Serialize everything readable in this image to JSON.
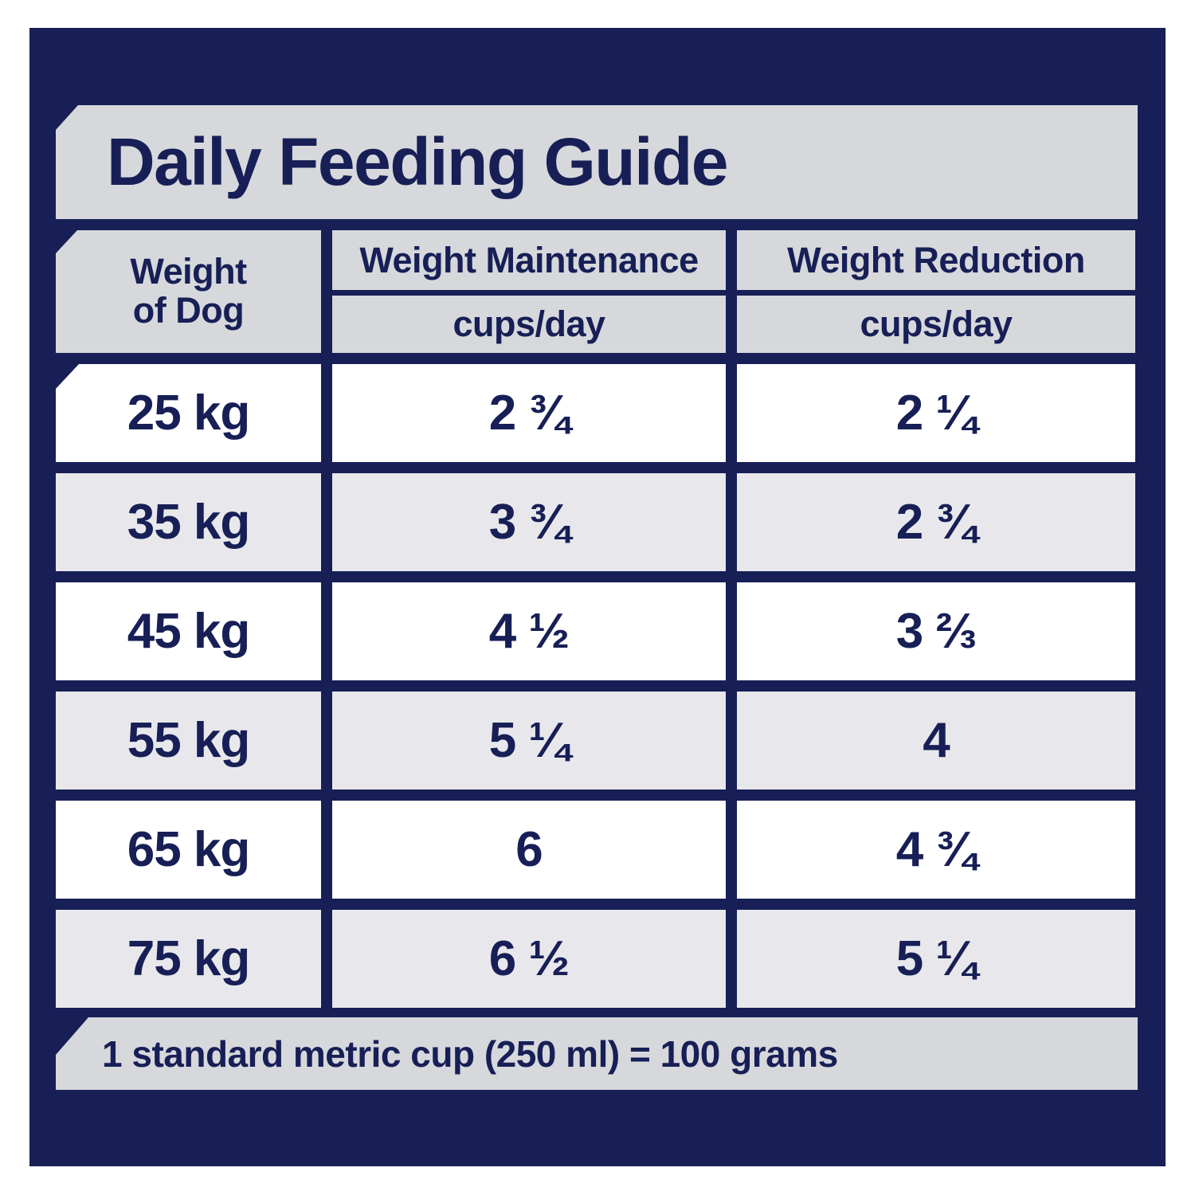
{
  "colors": {
    "navy": "#171f56",
    "panel_gray": "#d7d8dc",
    "row_alt_gray": "#e8e8ec",
    "row_white": "#ffffff"
  },
  "title": "Daily Feeding Guide",
  "table": {
    "weight_header": {
      "line1": "Weight",
      "line2": "of Dog"
    },
    "columns": [
      {
        "label": "Weight Maintenance",
        "sublabel": "cups/day"
      },
      {
        "label": "Weight Reduction",
        "sublabel": "cups/day"
      }
    ],
    "rows": [
      {
        "weight": "25 kg",
        "maintenance": "2 ¾",
        "reduction": "2 ¼"
      },
      {
        "weight": "35 kg",
        "maintenance": "3 ¾",
        "reduction": "2 ¾"
      },
      {
        "weight": "45 kg",
        "maintenance": "4 ½",
        "reduction": "3 ⅔"
      },
      {
        "weight": "55 kg",
        "maintenance": "5 ¼",
        "reduction": "4"
      },
      {
        "weight": "65 kg",
        "maintenance": "6",
        "reduction": "4 ¾"
      },
      {
        "weight": "75 kg",
        "maintenance": "6 ½",
        "reduction": "5 ¼"
      }
    ]
  },
  "footer": {
    "note": "1 standard metric cup (250 ml) = 100 grams"
  },
  "chart_data": {
    "type": "table",
    "title": "Daily Feeding Guide",
    "columns": [
      "Weight of Dog",
      "Weight Maintenance cups/day",
      "Weight Reduction cups/day"
    ],
    "rows": [
      [
        "25 kg",
        "2 ¾",
        "2 ¼"
      ],
      [
        "35 kg",
        "3 ¾",
        "2 ¾"
      ],
      [
        "45 kg",
        "4 ½",
        "3 ⅔"
      ],
      [
        "55 kg",
        "5 ¼",
        "4"
      ],
      [
        "65 kg",
        "6",
        "4 ¾"
      ],
      [
        "75 kg",
        "6 ½",
        "5 ¼"
      ]
    ],
    "weights_kg": [
      25,
      35,
      45,
      55,
      65,
      75
    ],
    "series": [
      {
        "name": "Weight Maintenance (cups/day)",
        "values": [
          2.75,
          3.75,
          4.5,
          5.25,
          6,
          6.5
        ]
      },
      {
        "name": "Weight Reduction (cups/day)",
        "values": [
          2.25,
          2.75,
          3.667,
          4,
          4.75,
          5.25
        ]
      }
    ],
    "note": "1 standard metric cup (250 ml) = 100 grams"
  }
}
